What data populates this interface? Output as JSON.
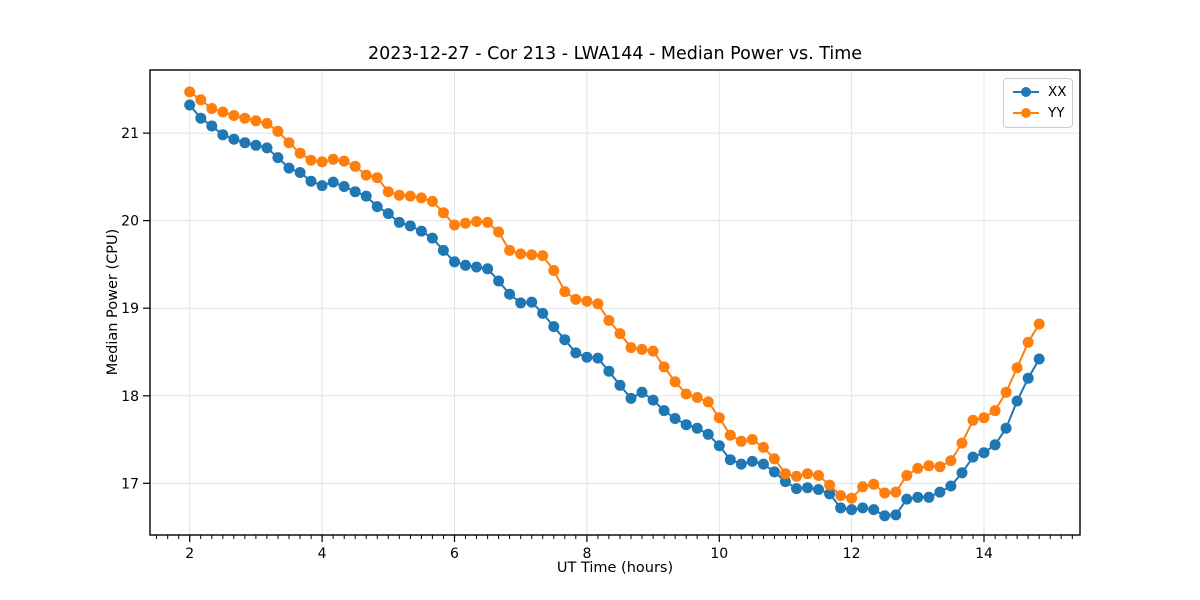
{
  "chart_data": {
    "type": "line",
    "title": "2023-12-27 - Cor 213 - LWA144 - Median Power vs. Time",
    "xlabel": "UT Time (hours)",
    "ylabel": "Median Power (CPU)",
    "xlim": [
      1.4,
      15.45
    ],
    "ylim": [
      16.41,
      21.72
    ],
    "x_major_ticks": [
      2,
      4,
      6,
      8,
      10,
      12,
      14
    ],
    "x_minor_step_hours": 0.1667,
    "y_major_ticks": [
      17,
      18,
      19,
      20,
      21
    ],
    "grid": true,
    "grid_color": "#e4e4e4",
    "background": "#ffffff",
    "spine_color": "#000000",
    "legend_position": "upper right",
    "marker": "circle",
    "x": [
      2.0,
      2.167,
      2.333,
      2.5,
      2.667,
      2.833,
      3.0,
      3.167,
      3.333,
      3.5,
      3.667,
      3.833,
      4.0,
      4.167,
      4.333,
      4.5,
      4.667,
      4.833,
      5.0,
      5.167,
      5.333,
      5.5,
      5.667,
      5.833,
      6.0,
      6.167,
      6.333,
      6.5,
      6.667,
      6.833,
      7.0,
      7.167,
      7.333,
      7.5,
      7.667,
      7.833,
      8.0,
      8.167,
      8.333,
      8.5,
      8.667,
      8.833,
      9.0,
      9.167,
      9.333,
      9.5,
      9.667,
      9.833,
      10.0,
      10.167,
      10.333,
      10.5,
      10.667,
      10.833,
      11.0,
      11.167,
      11.333,
      11.5,
      11.667,
      11.833,
      12.0,
      12.167,
      12.333,
      12.5,
      12.667,
      12.833,
      13.0,
      13.167,
      13.333,
      13.5,
      13.667,
      13.833,
      14.0,
      14.167,
      14.333,
      14.5,
      14.667,
      14.833
    ],
    "series": [
      {
        "name": "XX",
        "color": "#1f77b4",
        "values": [
          21.32,
          21.17,
          21.08,
          20.98,
          20.93,
          20.89,
          20.86,
          20.83,
          20.72,
          20.6,
          20.55,
          20.45,
          20.4,
          20.44,
          20.39,
          20.33,
          20.28,
          20.16,
          20.08,
          19.98,
          19.94,
          19.88,
          19.8,
          19.66,
          19.53,
          19.49,
          19.47,
          19.45,
          19.31,
          19.16,
          19.06,
          19.07,
          18.94,
          18.79,
          18.64,
          18.49,
          18.44,
          18.43,
          18.28,
          18.12,
          17.97,
          18.04,
          17.95,
          17.83,
          17.74,
          17.67,
          17.63,
          17.56,
          17.43,
          17.27,
          17.22,
          17.25,
          17.22,
          17.13,
          17.02,
          16.94,
          16.95,
          16.93,
          16.88,
          16.72,
          16.7,
          16.72,
          16.7,
          16.63,
          16.64,
          16.82,
          16.84,
          16.84,
          16.9,
          16.97,
          17.12,
          17.3,
          17.35,
          17.44,
          17.63,
          17.94,
          18.2,
          18.42
        ]
      },
      {
        "name": "YY",
        "color": "#ff7f0e",
        "values": [
          21.47,
          21.38,
          21.28,
          21.24,
          21.2,
          21.17,
          21.14,
          21.11,
          21.02,
          20.89,
          20.77,
          20.69,
          20.67,
          20.7,
          20.68,
          20.62,
          20.52,
          20.49,
          20.33,
          20.29,
          20.28,
          20.26,
          20.22,
          20.09,
          19.95,
          19.97,
          19.99,
          19.98,
          19.87,
          19.66,
          19.62,
          19.61,
          19.6,
          19.43,
          19.19,
          19.1,
          19.08,
          19.05,
          18.86,
          18.71,
          18.55,
          18.53,
          18.51,
          18.33,
          18.16,
          18.02,
          17.98,
          17.93,
          17.75,
          17.55,
          17.48,
          17.5,
          17.41,
          17.28,
          17.11,
          17.08,
          17.11,
          17.09,
          16.98,
          16.86,
          16.83,
          16.96,
          16.99,
          16.89,
          16.9,
          17.09,
          17.17,
          17.2,
          17.19,
          17.26,
          17.46,
          17.72,
          17.75,
          17.83,
          18.04,
          18.32,
          18.61,
          18.82
        ]
      }
    ]
  }
}
